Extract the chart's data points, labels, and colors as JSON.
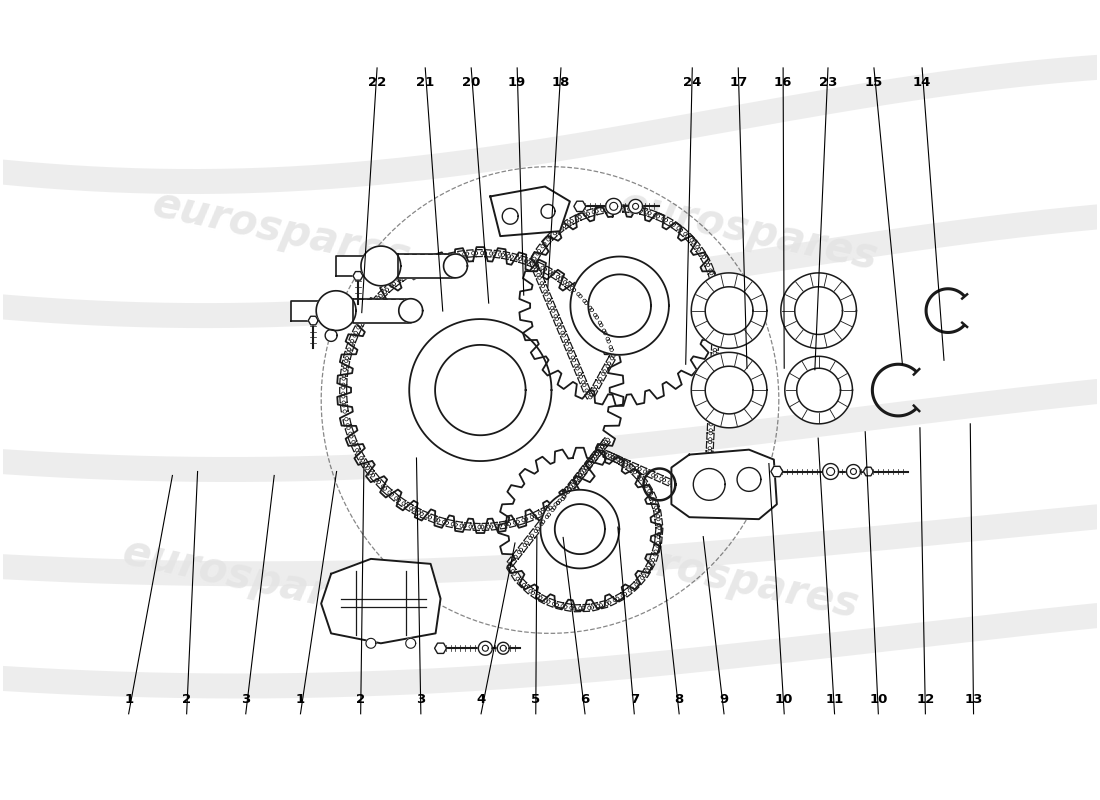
{
  "bg_color": "#ffffff",
  "line_color": "#1a1a1a",
  "watermark_color": "#e0e0e0",
  "watermark_text": "eurospares",
  "top_labels": [
    [
      1,
      0.115,
      0.895,
      0.155,
      0.595
    ],
    [
      2,
      0.168,
      0.895,
      0.178,
      0.59
    ],
    [
      3,
      0.222,
      0.895,
      0.248,
      0.595
    ],
    [
      1,
      0.272,
      0.895,
      0.305,
      0.59
    ],
    [
      2,
      0.327,
      0.895,
      0.33,
      0.58
    ],
    [
      3,
      0.382,
      0.895,
      0.378,
      0.573
    ],
    [
      4,
      0.437,
      0.895,
      0.468,
      0.68
    ],
    [
      5,
      0.487,
      0.895,
      0.488,
      0.672
    ],
    [
      6,
      0.532,
      0.895,
      0.512,
      0.673
    ],
    [
      7,
      0.577,
      0.895,
      0.562,
      0.66
    ],
    [
      8,
      0.618,
      0.895,
      0.6,
      0.67
    ],
    [
      9,
      0.659,
      0.895,
      0.64,
      0.672
    ],
    [
      10,
      0.714,
      0.895,
      0.7,
      0.58
    ],
    [
      11,
      0.76,
      0.895,
      0.745,
      0.548
    ],
    [
      10,
      0.8,
      0.895,
      0.788,
      0.54
    ],
    [
      12,
      0.843,
      0.895,
      0.838,
      0.535
    ],
    [
      13,
      0.887,
      0.895,
      0.884,
      0.53
    ]
  ],
  "bottom_labels": [
    [
      22,
      0.342,
      0.082,
      0.328,
      0.39
    ],
    [
      21,
      0.386,
      0.082,
      0.402,
      0.388
    ],
    [
      20,
      0.428,
      0.082,
      0.444,
      0.378
    ],
    [
      19,
      0.47,
      0.082,
      0.476,
      0.368
    ],
    [
      18,
      0.51,
      0.082,
      0.498,
      0.358
    ],
    [
      24,
      0.63,
      0.082,
      0.624,
      0.455
    ],
    [
      17,
      0.672,
      0.082,
      0.68,
      0.46
    ],
    [
      16,
      0.713,
      0.082,
      0.714,
      0.46
    ],
    [
      23,
      0.754,
      0.082,
      0.742,
      0.462
    ],
    [
      15,
      0.796,
      0.082,
      0.822,
      0.455
    ],
    [
      14,
      0.84,
      0.082,
      0.86,
      0.45
    ]
  ]
}
